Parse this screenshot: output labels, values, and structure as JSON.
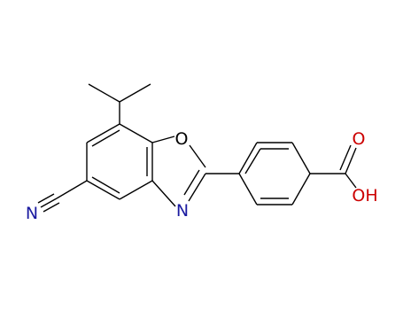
{
  "atoms": {
    "ring_oxygen": "O",
    "ring_nitrogen": "N",
    "carbonyl_oxygen": "O",
    "hydroxyl": "OH",
    "nitrile_nitrogen": "N"
  }
}
